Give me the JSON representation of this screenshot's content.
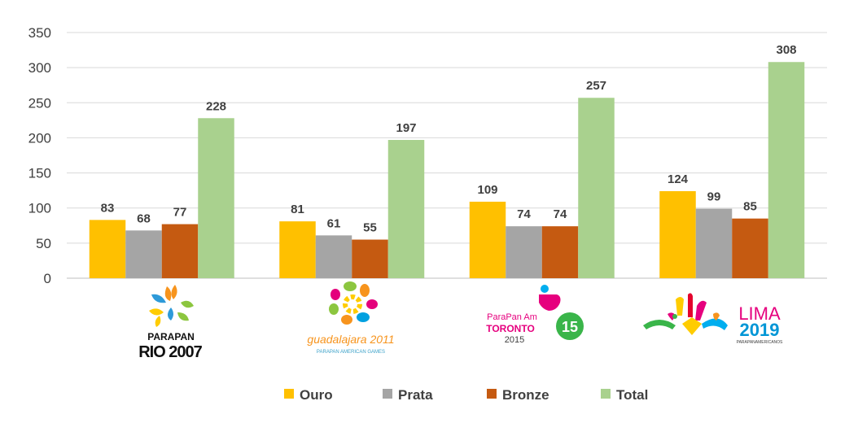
{
  "chart_data": {
    "type": "bar",
    "categories": [
      "Parapan Rio 2007",
      "Guadalajara 2011",
      "Toronto 2015",
      "Lima 2019"
    ],
    "series": [
      {
        "name": "Ouro",
        "values": [
          83,
          81,
          109,
          124
        ],
        "color": "#FFC000"
      },
      {
        "name": "Prata",
        "values": [
          68,
          61,
          74,
          99
        ],
        "color": "#A5A5A5"
      },
      {
        "name": "Bronze",
        "values": [
          77,
          55,
          74,
          85
        ],
        "color": "#C55A11"
      },
      {
        "name": "Total",
        "values": [
          228,
          197,
          257,
          308
        ],
        "color": "#A9D18E"
      }
    ],
    "ylim": [
      0,
      350
    ],
    "yticks": [
      0,
      50,
      100,
      150,
      200,
      250,
      300,
      350
    ],
    "grid": true,
    "legend_position": "bottom"
  },
  "logos": [
    {
      "name": "parapan-rio-2007-logo",
      "lines": [
        "PARAPAN",
        "RIO 2007"
      ]
    },
    {
      "name": "guadalajara-2011-logo",
      "lines": [
        "guadalajara 2011",
        "PARAPAN AMERICAN GAMES"
      ]
    },
    {
      "name": "toronto-2015-logo",
      "lines": [
        "ParaPan Am",
        "TORONTO",
        "2015"
      ]
    },
    {
      "name": "lima-2019-logo",
      "lines": [
        "LIMA",
        "2019",
        "PARAPANAMERICANOS"
      ]
    }
  ]
}
